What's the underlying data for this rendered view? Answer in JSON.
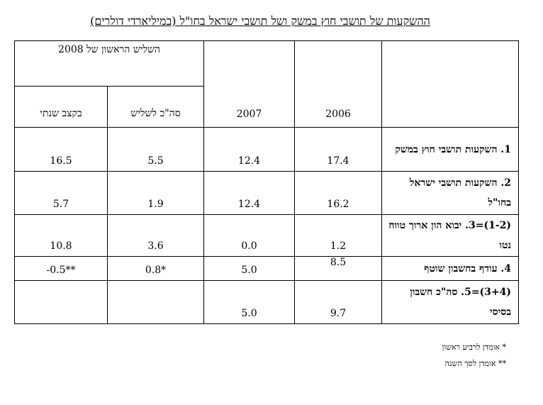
{
  "title": "ההשקעות של תושבי חוץ במשק ושל תושבי ישראל בחו\"ל (במיליארדי דולרים)",
  "table": {
    "header": {
      "label_col": "",
      "year_2006": "2006",
      "year_2007": "2007",
      "group_2008": "השליש הראשון של 2008",
      "sub_total": "סה\"כ לשליש",
      "sub_annual": "בקצב שנתי"
    },
    "rows": [
      {
        "label": "1. השקעות תושבי חוץ במשק",
        "v2006": "17.4",
        "v2007": "12.4",
        "total": "5.5",
        "annual": "16.5"
      },
      {
        "label": "2. השקעות תושבי ישראל בחו\"ל",
        "v2006": "16.2",
        "v2007": "12.4",
        "total": "1.9",
        "annual": "5.7"
      },
      {
        "label": "(1-2)=3. יבוא הון ארוך טווח נטו",
        "v2006": "1.2",
        "v2007": "0.0",
        "total": "3.6",
        "annual": "10.8"
      },
      {
        "label": "4. עודף בחשבון שוטף",
        "v2006": "8.5",
        "v2007": "5.0",
        "total": "0.8*",
        "annual": "-0.5**"
      },
      {
        "label": "(3+4)=5. סה\"כ חשבון בסיסי",
        "v2006": "9.7",
        "v2007": "5.0",
        "total": "",
        "annual": ""
      }
    ]
  },
  "notes": {
    "note1": "* אומדן לרביע ראשון",
    "note2": "** אומדן לסך השנה"
  }
}
